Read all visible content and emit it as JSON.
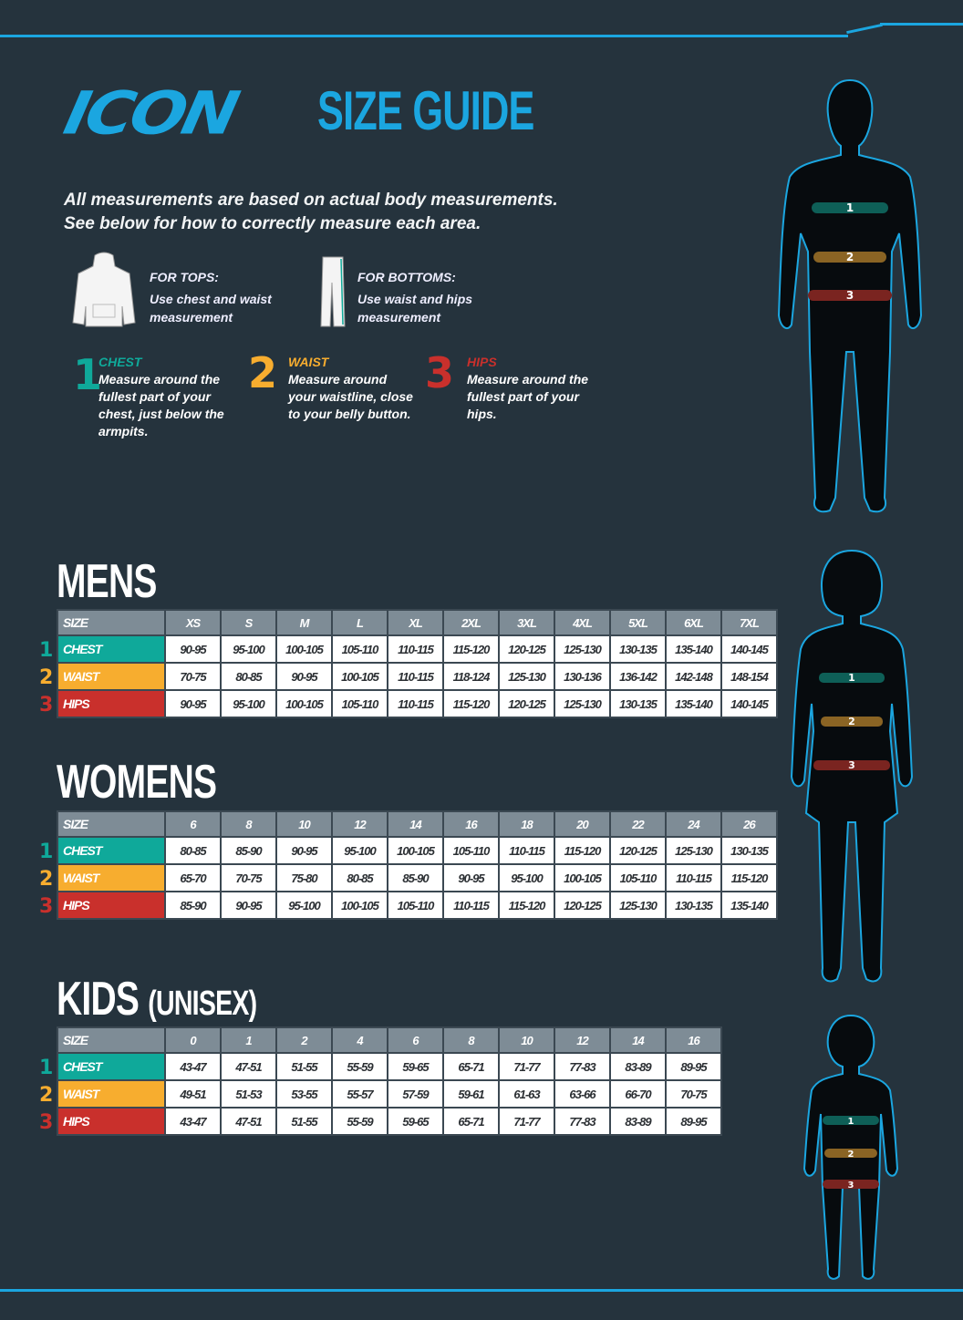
{
  "brand": {
    "logo": "ICON",
    "title": "SIZE GUIDE"
  },
  "colors": {
    "accent": "#1ba6e0",
    "background": "#25333d",
    "chest": "#0fa99a",
    "waist": "#f7ad2f",
    "hips": "#c9302c",
    "header": "#7e8c96"
  },
  "intro": {
    "line1": "All measurements are based on actual body measurements.",
    "line2": "See below for how to correctly measure each area."
  },
  "tops": {
    "heading": "FOR TOPS:",
    "text": "Use chest and waist measurement"
  },
  "bottoms": {
    "heading": "FOR BOTTOMS:",
    "text": "Use waist and hips measurement"
  },
  "measures": [
    {
      "num": "1",
      "title": "CHEST",
      "text": "Measure around the fullest part of your chest, just below the armpits."
    },
    {
      "num": "2",
      "title": "WAIST",
      "text": "Measure around your waistline, close to your belly button."
    },
    {
      "num": "3",
      "title": "HIPS",
      "text": "Measure around the fullest part of your hips."
    }
  ],
  "tables": [
    {
      "title": "MENS",
      "subtitle": "",
      "header": "SIZE",
      "sizes": [
        "XS",
        "S",
        "M",
        "L",
        "XL",
        "2XL",
        "3XL",
        "4XL",
        "5XL",
        "6XL",
        "7XL"
      ],
      "rows": [
        {
          "num": "1",
          "label": "CHEST",
          "values": [
            "90-95",
            "95-100",
            "100-105",
            "105-110",
            "110-115",
            "115-120",
            "120-125",
            "125-130",
            "130-135",
            "135-140",
            "140-145"
          ]
        },
        {
          "num": "2",
          "label": "WAIST",
          "values": [
            "70-75",
            "80-85",
            "90-95",
            "100-105",
            "110-115",
            "118-124",
            "125-130",
            "130-136",
            "136-142",
            "142-148",
            "148-154"
          ]
        },
        {
          "num": "3",
          "label": "HIPS",
          "values": [
            "90-95",
            "95-100",
            "100-105",
            "105-110",
            "110-115",
            "115-120",
            "120-125",
            "125-130",
            "130-135",
            "135-140",
            "140-145"
          ]
        }
      ]
    },
    {
      "title": "WOMENS",
      "subtitle": "",
      "header": "SIZE",
      "sizes": [
        "6",
        "8",
        "10",
        "12",
        "14",
        "16",
        "18",
        "20",
        "22",
        "24",
        "26"
      ],
      "rows": [
        {
          "num": "1",
          "label": "CHEST",
          "values": [
            "80-85",
            "85-90",
            "90-95",
            "95-100",
            "100-105",
            "105-110",
            "110-115",
            "115-120",
            "120-125",
            "125-130",
            "130-135"
          ]
        },
        {
          "num": "2",
          "label": "WAIST",
          "values": [
            "65-70",
            "70-75",
            "75-80",
            "80-85",
            "85-90",
            "90-95",
            "95-100",
            "100-105",
            "105-110",
            "110-115",
            "115-120"
          ]
        },
        {
          "num": "3",
          "label": "HIPS",
          "values": [
            "85-90",
            "90-95",
            "95-100",
            "100-105",
            "105-110",
            "110-115",
            "115-120",
            "120-125",
            "125-130",
            "130-135",
            "135-140"
          ]
        }
      ]
    },
    {
      "title": "KIDS",
      "subtitle": "(UNISEX)",
      "header": "SIZE",
      "sizes": [
        "0",
        "1",
        "2",
        "4",
        "6",
        "8",
        "10",
        "12",
        "14",
        "16"
      ],
      "rows": [
        {
          "num": "1",
          "label": "CHEST",
          "values": [
            "43-47",
            "47-51",
            "51-55",
            "55-59",
            "59-65",
            "65-71",
            "71-77",
            "77-83",
            "83-89",
            "89-95"
          ]
        },
        {
          "num": "2",
          "label": "WAIST",
          "values": [
            "49-51",
            "51-53",
            "53-55",
            "55-57",
            "57-59",
            "59-61",
            "61-63",
            "63-66",
            "66-70",
            "70-75"
          ]
        },
        {
          "num": "3",
          "label": "HIPS",
          "values": [
            "43-47",
            "47-51",
            "51-55",
            "55-59",
            "59-65",
            "65-71",
            "71-77",
            "77-83",
            "83-89",
            "89-95"
          ]
        }
      ]
    }
  ]
}
